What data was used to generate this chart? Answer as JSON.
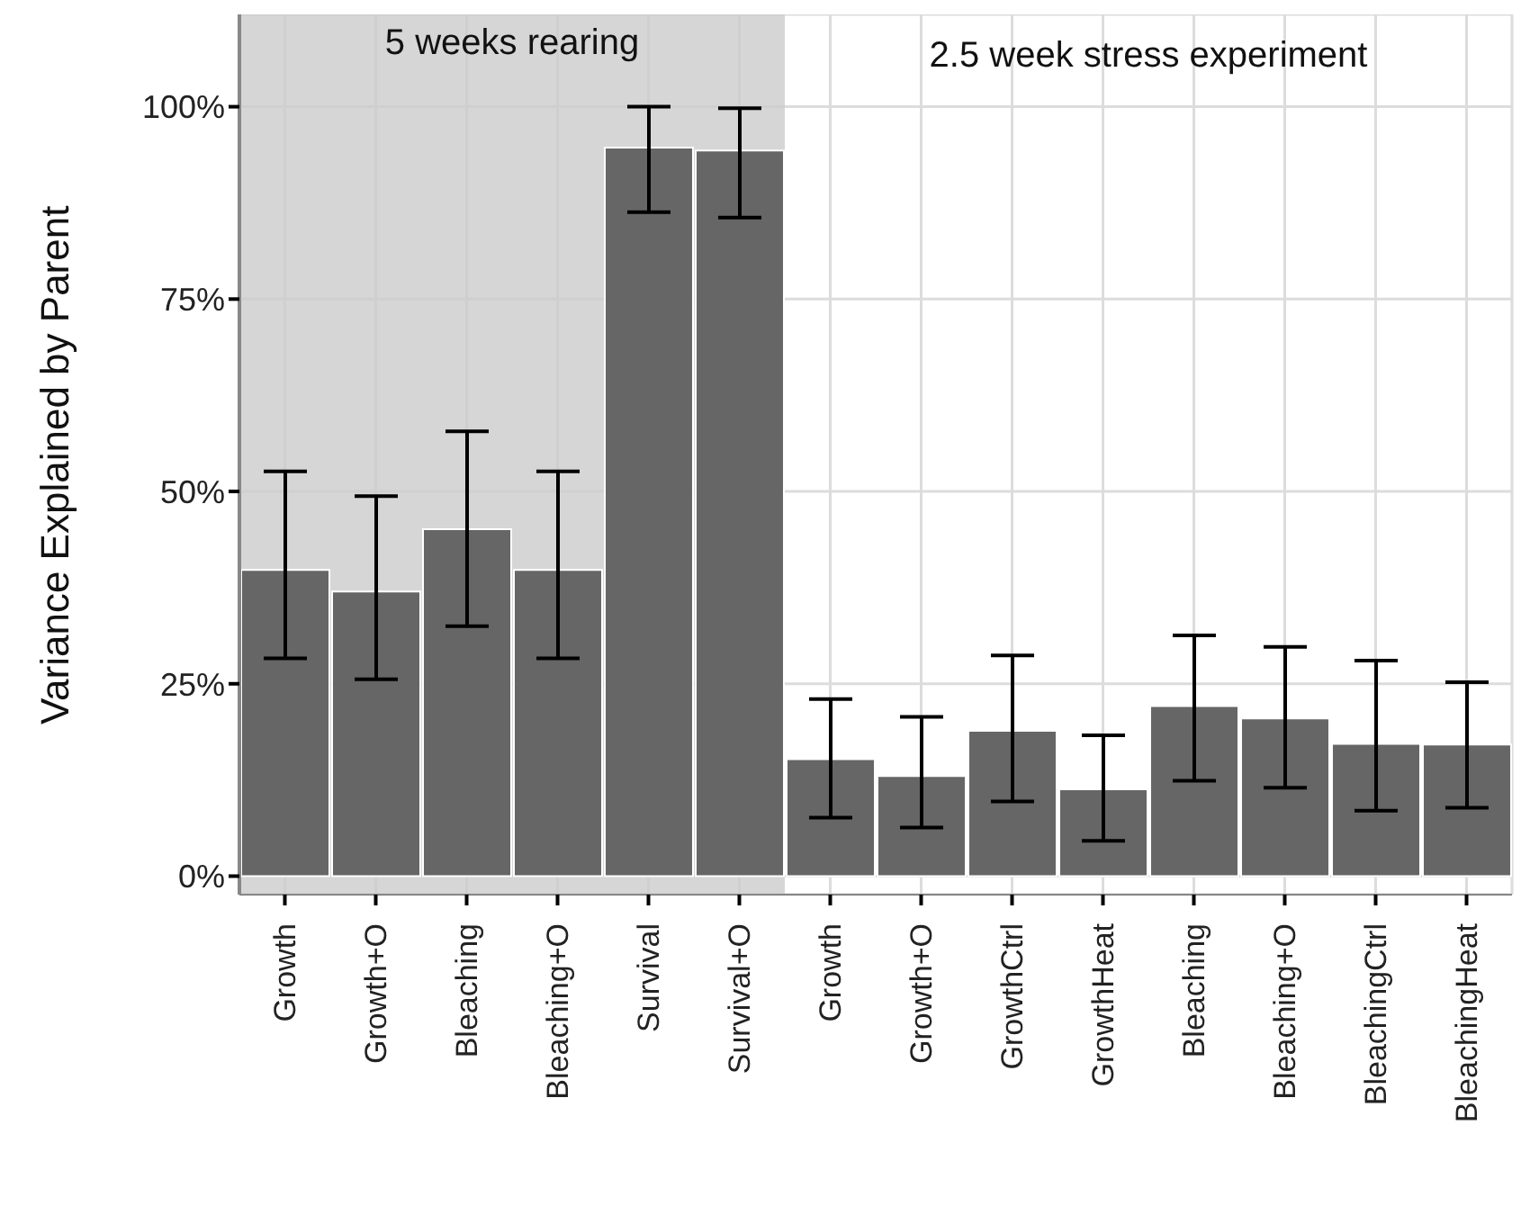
{
  "chart_data": {
    "type": "bar",
    "ylabel": "Variance Explained by Parent",
    "categories": [
      "Growth",
      "Growth+O",
      "Bleaching",
      "Bleaching+O",
      "Survival",
      "Survival+O",
      "Growth",
      "Growth+O",
      "GrowthCtrl",
      "GrowthHeat",
      "Bleaching",
      "Bleaching+O",
      "BleachingCtrl",
      "BleachingHeat"
    ],
    "values": [
      39.8,
      37.0,
      45.1,
      39.8,
      94.7,
      94.3,
      15.2,
      13.0,
      18.9,
      11.3,
      22.1,
      20.5,
      17.2,
      17.1
    ],
    "errors": [
      [
        28.3,
        52.6
      ],
      [
        25.6,
        49.4
      ],
      [
        32.5,
        57.8
      ],
      [
        28.3,
        52.6
      ],
      [
        86.3,
        100
      ],
      [
        85.6,
        99.8
      ],
      [
        7.6,
        23.0
      ],
      [
        6.3,
        20.7
      ],
      [
        9.7,
        28.7
      ],
      [
        4.6,
        18.3
      ],
      [
        12.4,
        31.3
      ],
      [
        11.5,
        29.8
      ],
      [
        8.5,
        28.0
      ],
      [
        8.9,
        25.2
      ]
    ],
    "color": "#666666",
    "ylim": [
      -2.4,
      112
    ],
    "yticks": [
      {
        "value": 0,
        "label": "0%"
      },
      {
        "value": 25,
        "label": "25%"
      },
      {
        "value": 50,
        "label": "50%"
      },
      {
        "value": 75,
        "label": "75%"
      },
      {
        "value": 100,
        "label": "100%"
      }
    ],
    "bands": [
      {
        "axis": "x",
        "from": "Growth",
        "to": "Survival+O",
        "label": "5 weeks rearing",
        "color": "#cccccc"
      }
    ],
    "annotations": [
      "2.5 week stress experiment"
    ],
    "grid": true
  }
}
